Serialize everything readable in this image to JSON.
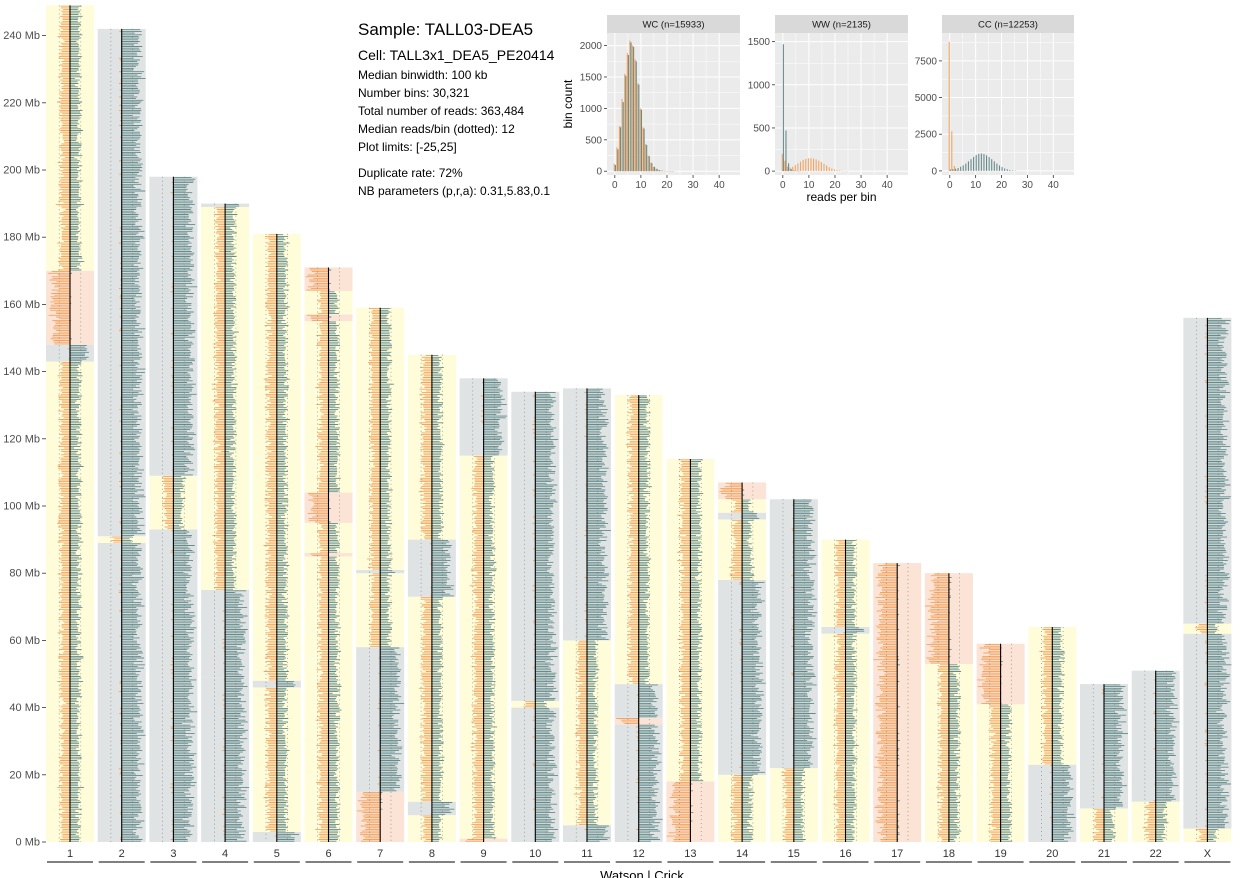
{
  "colors": {
    "ww_bg": "#fbe3d6",
    "cc_bg": "#dfe3e3",
    "wc_bg": "#fffcd9",
    "watson": "#f4a460",
    "crick": "#668b8b",
    "hist_panel": "#ebebeb",
    "hist_strip": "#d9d9d9"
  },
  "info": {
    "title": "Sample: TALL03-DEA5",
    "cell": "Cell: TALL3x1_DEA5_PE20414",
    "lines": [
      "Median binwidth: 100 kb",
      "Number bins: 30,321",
      "Total number of reads: 363,484",
      "Median reads/bin (dotted): 12",
      "Plot limits: [-25,25]"
    ],
    "lines2": [
      "Duplicate rate: 72%",
      "NB parameters (p,r,a): 0.31,5.83,0.1"
    ]
  },
  "chart_data": [
    {
      "type": "bar",
      "xlabel": "Watson | Crick",
      "y_axis": {
        "ticks": [
          0,
          20,
          40,
          60,
          80,
          100,
          120,
          140,
          160,
          180,
          200,
          220,
          240
        ],
        "tick_labels": [
          "0 Mb",
          "20 Mb",
          "40 Mb",
          "60 Mb",
          "80 Mb",
          "100 Mb",
          "120 Mb",
          "140 Mb",
          "160 Mb",
          "180 Mb",
          "200 Mb",
          "220 Mb",
          "240 Mb"
        ],
        "range": [
          0,
          249
        ]
      },
      "categories": [
        "1",
        "2",
        "3",
        "4",
        "5",
        "6",
        "7",
        "8",
        "9",
        "10",
        "11",
        "12",
        "13",
        "14",
        "15",
        "16",
        "17",
        "18",
        "19",
        "20",
        "21",
        "22",
        "X"
      ],
      "lengths_mb": [
        249,
        242,
        198,
        190,
        181,
        171,
        159,
        145,
        138,
        134,
        135,
        133,
        114,
        107,
        102,
        90,
        83,
        80,
        59,
        64,
        47,
        51,
        156
      ],
      "segments": [
        [
          [
            0,
            125,
            "WC"
          ],
          [
            125,
            143,
            "WC"
          ],
          [
            143,
            148,
            "CC"
          ],
          [
            148,
            170,
            "WW"
          ],
          [
            170,
            249,
            "WC"
          ]
        ],
        [
          [
            0,
            89,
            "CC"
          ],
          [
            89,
            91,
            "WC"
          ],
          [
            91,
            242,
            "CC"
          ]
        ],
        [
          [
            0,
            93,
            "CC"
          ],
          [
            93,
            109,
            "WC"
          ],
          [
            109,
            179,
            "CC"
          ],
          [
            179,
            198,
            "CC"
          ]
        ],
        [
          [
            0,
            49,
            "CC"
          ],
          [
            49,
            75,
            "CC"
          ],
          [
            75,
            189,
            "WC"
          ],
          [
            189,
            190,
            "CC"
          ]
        ],
        [
          [
            0,
            3,
            "CC"
          ],
          [
            3,
            46,
            "WC"
          ],
          [
            46,
            48,
            "CC"
          ],
          [
            48,
            61,
            "WC"
          ],
          [
            61,
            181,
            "WC"
          ]
        ],
        [
          [
            0,
            85,
            "WC"
          ],
          [
            85,
            86,
            "WW"
          ],
          [
            86,
            95,
            "WC"
          ],
          [
            95,
            104,
            "WW"
          ],
          [
            104,
            155,
            "WC"
          ],
          [
            155,
            157,
            "WW"
          ],
          [
            157,
            164,
            "WC"
          ],
          [
            164,
            171,
            "WW"
          ]
        ],
        [
          [
            0,
            15,
            "WW"
          ],
          [
            15,
            58,
            "CC"
          ],
          [
            58,
            80,
            "WC"
          ],
          [
            80,
            81,
            "CC"
          ],
          [
            81,
            159,
            "WC"
          ]
        ],
        [
          [
            0,
            8,
            "WC"
          ],
          [
            8,
            12,
            "CC"
          ],
          [
            12,
            73,
            "WC"
          ],
          [
            73,
            90,
            "CC"
          ],
          [
            90,
            145,
            "WC"
          ]
        ],
        [
          [
            0,
            1,
            "WW"
          ],
          [
            1,
            115,
            "WC"
          ],
          [
            115,
            138,
            "CC"
          ]
        ],
        [
          [
            0,
            40,
            "CC"
          ],
          [
            40,
            42,
            "WC"
          ],
          [
            42,
            134,
            "CC"
          ]
        ],
        [
          [
            0,
            5,
            "CC"
          ],
          [
            5,
            60,
            "WC"
          ],
          [
            60,
            135,
            "CC"
          ]
        ],
        [
          [
            0,
            35,
            "CC"
          ],
          [
            35,
            37,
            "WW"
          ],
          [
            37,
            47,
            "CC"
          ],
          [
            47,
            133,
            "WC"
          ]
        ],
        [
          [
            0,
            18,
            "WW"
          ],
          [
            18,
            114,
            "WC"
          ]
        ],
        [
          [
            0,
            20,
            "WC"
          ],
          [
            20,
            78,
            "CC"
          ],
          [
            78,
            96,
            "WC"
          ],
          [
            96,
            98,
            "CC"
          ],
          [
            98,
            102,
            "WC"
          ],
          [
            102,
            107,
            "WW"
          ]
        ],
        [
          [
            0,
            22,
            "WC"
          ],
          [
            22,
            102,
            "CC"
          ]
        ],
        [
          [
            0,
            62,
            "WC"
          ],
          [
            62,
            64,
            "CC"
          ],
          [
            64,
            90,
            "WC"
          ]
        ],
        [
          [
            0,
            83,
            "WW"
          ]
        ],
        [
          [
            0,
            53,
            "WC"
          ],
          [
            53,
            80,
            "WW"
          ]
        ],
        [
          [
            0,
            41,
            "WC"
          ],
          [
            41,
            59,
            "WW"
          ]
        ],
        [
          [
            0,
            23,
            "CC"
          ],
          [
            23,
            64,
            "WC"
          ]
        ],
        [
          [
            0,
            10,
            "WC"
          ],
          [
            10,
            47,
            "CC"
          ]
        ],
        [
          [
            0,
            12,
            "WC"
          ],
          [
            12,
            51,
            "CC"
          ]
        ],
        [
          [
            0,
            4,
            "WC"
          ],
          [
            4,
            62,
            "CC"
          ],
          [
            62,
            65,
            "WC"
          ],
          [
            65,
            156,
            "CC"
          ]
        ]
      ]
    },
    {
      "type": "bar",
      "title": "WC (n=15933)",
      "ylabel": "bin count",
      "xlabel": "reads per bin",
      "xlim": [
        -3,
        48
      ],
      "ylim": [
        -60,
        2200
      ],
      "x_ticks": [
        0,
        10,
        20,
        30,
        40
      ],
      "y_ticks": [
        0,
        500,
        1000,
        1500,
        2000
      ],
      "x": [
        0,
        1,
        2,
        3,
        4,
        5,
        6,
        7,
        8,
        9,
        10,
        11,
        12,
        13,
        14,
        15,
        16,
        17,
        18,
        19,
        20,
        21,
        22,
        23,
        24
      ],
      "series": [
        {
          "name": "Watson",
          "color": "#f4a460",
          "values": [
            120,
            380,
            720,
            1150,
            1550,
            1880,
            2080,
            2000,
            1780,
            1400,
            1000,
            700,
            430,
            250,
            140,
            70,
            40,
            20,
            10,
            6,
            3,
            2,
            1,
            1,
            0
          ]
        },
        {
          "name": "Crick",
          "color": "#668b8b",
          "values": [
            100,
            350,
            700,
            1100,
            1520,
            1850,
            2050,
            1980,
            1750,
            1380,
            980,
            680,
            420,
            240,
            130,
            70,
            38,
            18,
            9,
            5,
            3,
            2,
            1,
            0,
            0
          ]
        }
      ]
    },
    {
      "type": "bar",
      "title": "WW (n=2135)",
      "xlabel": "reads per bin",
      "xlim": [
        -3,
        48
      ],
      "ylim": [
        -45,
        1600
      ],
      "x_ticks": [
        0,
        10,
        20,
        30,
        40
      ],
      "y_ticks": [
        0,
        500,
        1000,
        1500
      ],
      "x": [
        0,
        1,
        2,
        3,
        4,
        5,
        6,
        7,
        8,
        9,
        10,
        11,
        12,
        13,
        14,
        15,
        16,
        17,
        18,
        19,
        20,
        21,
        22,
        23,
        24,
        25
      ],
      "series": [
        {
          "name": "Watson",
          "color": "#f4a460",
          "values": [
            200,
            120,
            50,
            40,
            50,
            70,
            90,
            110,
            130,
            140,
            150,
            150,
            145,
            135,
            120,
            105,
            85,
            65,
            45,
            30,
            20,
            12,
            8,
            4,
            2,
            1
          ]
        },
        {
          "name": "Crick",
          "color": "#668b8b",
          "values": [
            1470,
            470,
            90,
            25,
            8,
            3,
            1,
            0,
            0,
            0,
            0,
            0,
            0,
            0,
            0,
            0,
            0,
            0,
            0,
            0,
            0,
            0,
            0,
            0,
            0,
            0
          ]
        }
      ]
    },
    {
      "type": "bar",
      "title": "CC (n=12253)",
      "xlabel": "reads per bin",
      "xlim": [
        -3,
        48
      ],
      "ylim": [
        -280,
        9400
      ],
      "x_ticks": [
        0,
        10,
        20,
        30,
        40
      ],
      "y_ticks": [
        0,
        2500,
        5000,
        7500
      ],
      "x": [
        0,
        1,
        2,
        3,
        4,
        5,
        6,
        7,
        8,
        9,
        10,
        11,
        12,
        13,
        14,
        15,
        16,
        17,
        18,
        19,
        20,
        21,
        22,
        23,
        24,
        25
      ],
      "series": [
        {
          "name": "Watson",
          "color": "#f4a460",
          "values": [
            8800,
            2700,
            350,
            60,
            15,
            5,
            2,
            0,
            0,
            0,
            0,
            0,
            0,
            0,
            0,
            0,
            0,
            0,
            0,
            0,
            0,
            0,
            0,
            0,
            0,
            0
          ]
        },
        {
          "name": "Crick",
          "color": "#668b8b",
          "values": [
            100,
            120,
            150,
            200,
            280,
            380,
            500,
            650,
            800,
            950,
            1080,
            1160,
            1180,
            1150,
            1060,
            940,
            800,
            650,
            500,
            370,
            260,
            170,
            110,
            60,
            30,
            15
          ]
        }
      ]
    }
  ]
}
